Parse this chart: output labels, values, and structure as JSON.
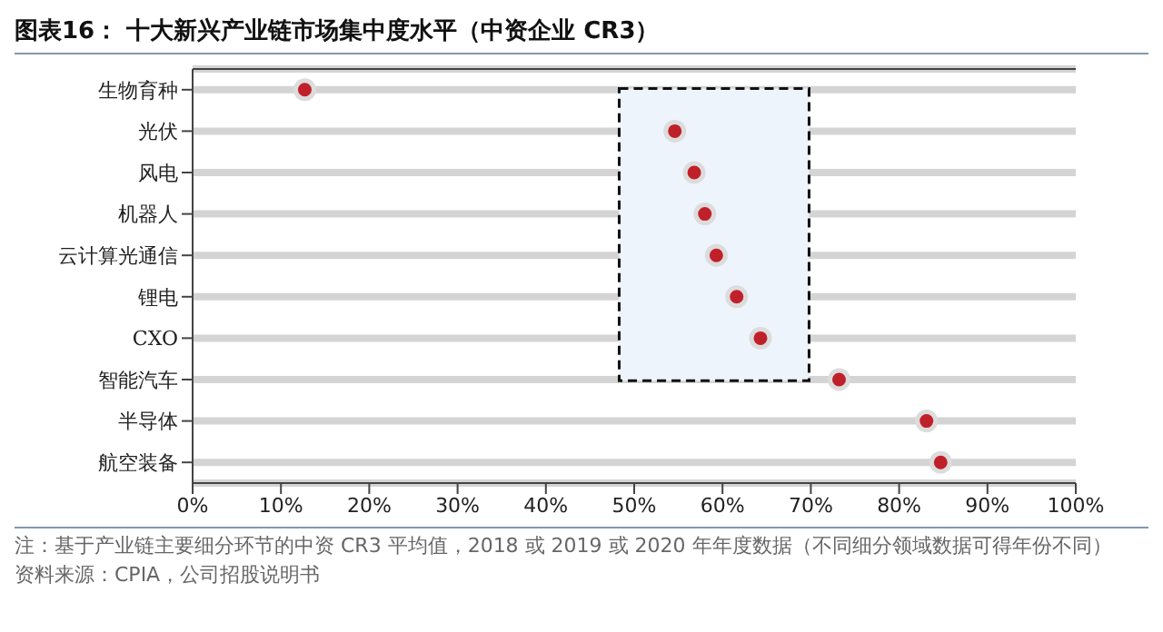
{
  "chart_data": {
    "type": "scatter",
    "orientation": "horizontal",
    "title": "图表16：  十大新兴产业链市场集中度水平（中资企业 CR3）",
    "categories": [
      "生物育种",
      "光伏",
      "风电",
      "机器人",
      "云计算光通信",
      "锂电",
      "CXO",
      "智能汽车",
      "半导体",
      "航空装备"
    ],
    "values": [
      12.7,
      54.6,
      56.8,
      58.0,
      59.3,
      61.6,
      64.3,
      73.2,
      83.1,
      84.7
    ],
    "color": "#c0202a",
    "marker": "circle",
    "grid": "y",
    "xlim": [
      0,
      100
    ],
    "xticks": [
      {
        "value": 0,
        "label": "0%"
      },
      {
        "value": 10,
        "label": "10%"
      },
      {
        "value": 20,
        "label": "20%"
      },
      {
        "value": 30,
        "label": "30%"
      },
      {
        "value": 40,
        "label": "40%"
      },
      {
        "value": 50,
        "label": "50%"
      },
      {
        "value": 60,
        "label": "60%"
      },
      {
        "value": 70,
        "label": "70%"
      },
      {
        "value": 80,
        "label": "80%"
      },
      {
        "value": 90,
        "label": "90%"
      },
      {
        "value": 100,
        "label": "100%"
      }
    ],
    "bands": [
      {
        "axis": "x",
        "from": 48.3,
        "to": 69.8,
        "color": "#eef4fc"
      }
    ],
    "annotations": [
      "注：基于产业链主要细分环节的中资 CR3 平均值，2018 或 2019 或 2020 年年度数据（不同细分领域数据可得年份不同）",
      "资料来源：CPIA，公司招股说明书"
    ]
  }
}
